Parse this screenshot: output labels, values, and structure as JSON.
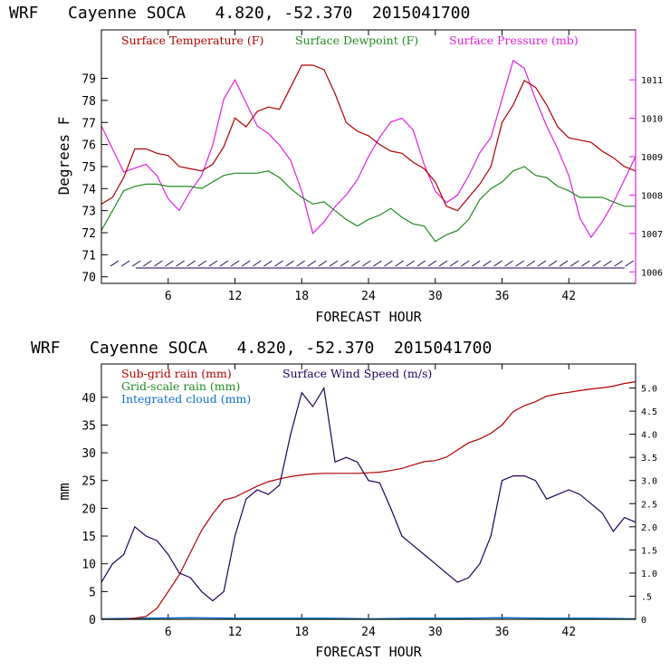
{
  "colors": {
    "temperature": "#b00000",
    "dewpoint": "#208a20",
    "pressure": "#e020e0",
    "subgrid_rain": "#b00000",
    "gridscale_rain": "#208a20",
    "cloud": "#1070d0",
    "wind": "#20005a",
    "axis": "#000000"
  },
  "chart_data": [
    {
      "type": "line",
      "title": "WRF   Cayenne SOCA   4.820, -52.370  2015041700",
      "xlabel": "FORECAST HOUR",
      "ylabel": "Degrees F",
      "xlim": [
        0,
        48
      ],
      "ylim": [
        69.7,
        81.2
      ],
      "y2lim": [
        1005.7,
        1012.3
      ],
      "xticks": [
        6,
        12,
        18,
        24,
        30,
        36,
        42
      ],
      "xtick_labels": [
        "6",
        "12",
        "18",
        "24",
        "30",
        "36",
        "42"
      ],
      "yticks": [
        70,
        71,
        72,
        73,
        74,
        75,
        76,
        77,
        78,
        79
      ],
      "ytick_labels": [
        "70",
        "71",
        "72",
        "73",
        "74",
        "75",
        "76",
        "77",
        "78",
        "79"
      ],
      "y2ticks": [
        1006,
        1007,
        1008,
        1009,
        1010,
        1011
      ],
      "y2tick_labels": [
        "1006",
        "1007",
        "1008",
        "1009",
        "1010",
        "1011"
      ],
      "legend": [
        "Surface Temperature (F)",
        "Surface Dewpoint (F)",
        "Surface Pressure (mb)"
      ],
      "series": [
        {
          "name": "Surface Temperature (F)",
          "axis": "left",
          "x": [
            0,
            1,
            2,
            3,
            4,
            5,
            6,
            7,
            8,
            9,
            10,
            11,
            12,
            13,
            14,
            15,
            16,
            17,
            18,
            19,
            20,
            21,
            22,
            23,
            24,
            25,
            26,
            27,
            28,
            29,
            30,
            31,
            32,
            33,
            34,
            35,
            36,
            37,
            38,
            39,
            40,
            41,
            42,
            43,
            44,
            45,
            46,
            47,
            48
          ],
          "values": [
            73.3,
            73.6,
            74.5,
            75.8,
            75.8,
            75.6,
            75.5,
            75.0,
            74.9,
            74.8,
            75.1,
            75.9,
            77.2,
            76.8,
            77.5,
            77.7,
            77.6,
            78.6,
            79.6,
            79.6,
            79.4,
            78.3,
            77.0,
            76.6,
            76.4,
            76.0,
            75.7,
            75.6,
            75.2,
            74.9,
            74.3,
            73.2,
            73.0,
            73.6,
            74.2,
            75.0,
            77.0,
            77.8,
            78.9,
            78.6,
            77.8,
            76.8,
            76.3,
            76.2,
            76.1,
            75.7,
            75.4,
            75.0,
            74.8
          ]
        },
        {
          "name": "Surface Dewpoint (F)",
          "axis": "left",
          "x": [
            0,
            1,
            2,
            3,
            4,
            5,
            6,
            7,
            8,
            9,
            10,
            11,
            12,
            13,
            14,
            15,
            16,
            17,
            18,
            19,
            20,
            21,
            22,
            23,
            24,
            25,
            26,
            27,
            28,
            29,
            30,
            31,
            32,
            33,
            34,
            35,
            36,
            37,
            38,
            39,
            40,
            41,
            42,
            43,
            44,
            45,
            46,
            47,
            48
          ],
          "values": [
            72.1,
            73.0,
            73.9,
            74.1,
            74.2,
            74.2,
            74.1,
            74.1,
            74.1,
            74.0,
            74.3,
            74.6,
            74.7,
            74.7,
            74.7,
            74.8,
            74.5,
            74.0,
            73.6,
            73.3,
            73.4,
            73.0,
            72.6,
            72.3,
            72.6,
            72.8,
            73.1,
            72.7,
            72.4,
            72.3,
            71.6,
            71.9,
            72.1,
            72.6,
            73.5,
            74.0,
            74.3,
            74.8,
            75.0,
            74.6,
            74.5,
            74.1,
            73.9,
            73.6,
            73.6,
            73.6,
            73.4,
            73.2,
            73.2
          ]
        },
        {
          "name": "Surface Pressure (mb)",
          "axis": "right",
          "x": [
            0,
            1,
            2,
            3,
            4,
            5,
            6,
            7,
            8,
            9,
            10,
            11,
            12,
            13,
            14,
            15,
            16,
            17,
            18,
            19,
            20,
            21,
            22,
            23,
            24,
            25,
            26,
            27,
            28,
            29,
            30,
            31,
            32,
            33,
            34,
            35,
            36,
            37,
            38,
            39,
            40,
            41,
            42,
            43,
            44,
            45,
            46,
            47,
            48
          ],
          "values": [
            1009.8,
            1009.2,
            1008.6,
            1008.7,
            1008.8,
            1008.5,
            1007.9,
            1007.6,
            1008.1,
            1008.5,
            1009.3,
            1010.5,
            1011.0,
            1010.4,
            1009.8,
            1009.6,
            1009.3,
            1008.9,
            1008.1,
            1007.0,
            1007.3,
            1007.7,
            1008.0,
            1008.4,
            1009.0,
            1009.5,
            1009.9,
            1010.0,
            1009.7,
            1008.8,
            1008.1,
            1007.8,
            1008.0,
            1008.5,
            1009.1,
            1009.5,
            1010.5,
            1011.5,
            1011.3,
            1010.5,
            1009.8,
            1009.2,
            1008.5,
            1007.4,
            1006.9,
            1007.3,
            1007.8,
            1008.4,
            1009.0
          ]
        }
      ],
      "wind_barbs": true
    },
    {
      "type": "line",
      "title": "WRF   Cayenne SOCA   4.820, -52.370  2015041700",
      "xlabel": "FORECAST HOUR",
      "ylabel": "mm",
      "xlim": [
        0,
        48
      ],
      "ylim": [
        0,
        46
      ],
      "y2lim": [
        0,
        5.52
      ],
      "xticks": [
        6,
        12,
        18,
        24,
        30,
        36,
        42
      ],
      "xtick_labels": [
        "6",
        "12",
        "18",
        "24",
        "30",
        "36",
        "42"
      ],
      "yticks": [
        0,
        5,
        10,
        15,
        20,
        25,
        30,
        35,
        40
      ],
      "ytick_labels": [
        "0",
        "5",
        "10",
        "15",
        "20",
        "25",
        "30",
        "35",
        "40"
      ],
      "y2ticks": [
        0,
        0.5,
        1.0,
        1.5,
        2.0,
        2.5,
        3.0,
        3.5,
        4.0,
        4.5,
        5.0
      ],
      "y2tick_labels": [
        "0",
        ".5",
        "1.0",
        "1.5",
        "2.0",
        "2.5",
        "3.0",
        "3.5",
        "4.0",
        "4.5",
        "5.0"
      ],
      "legend": [
        "Sub-grid rain (mm)",
        "Grid-scale rain (mm)",
        "Integrated cloud (mm)",
        "Surface Wind Speed (m/s)"
      ],
      "series": [
        {
          "name": "Sub-grid rain (mm)",
          "axis": "left",
          "x": [
            0,
            1,
            2,
            3,
            4,
            5,
            6,
            7,
            8,
            9,
            10,
            11,
            12,
            13,
            14,
            15,
            16,
            17,
            18,
            19,
            20,
            21,
            22,
            23,
            24,
            25,
            26,
            27,
            28,
            29,
            30,
            31,
            32,
            33,
            34,
            35,
            36,
            37,
            38,
            39,
            40,
            41,
            42,
            43,
            44,
            45,
            46,
            47,
            48
          ],
          "values": [
            0,
            0,
            0,
            0.2,
            0.5,
            2,
            5,
            8,
            12,
            16,
            19,
            21.5,
            22,
            23,
            24,
            24.8,
            25.3,
            25.7,
            26,
            26.2,
            26.3,
            26.3,
            26.3,
            26.3,
            26.4,
            26.5,
            26.8,
            27.2,
            27.8,
            28.4,
            28.6,
            29.2,
            30.5,
            31.8,
            32.5,
            33.5,
            35,
            37.4,
            38.5,
            39.2,
            40.2,
            40.6,
            40.9,
            41.2,
            41.5,
            41.7,
            42.0,
            42.5,
            42.8
          ]
        },
        {
          "name": "Grid-scale rain (mm)",
          "axis": "left",
          "x": [
            0,
            48
          ],
          "values": [
            0,
            0
          ]
        },
        {
          "name": "Integrated cloud (mm)",
          "axis": "left",
          "x": [
            0,
            4,
            8,
            12,
            16,
            20,
            24,
            28,
            32,
            36,
            40,
            44,
            48
          ],
          "values": [
            0.1,
            0.2,
            0.3,
            0.2,
            0.2,
            0.2,
            0.1,
            0.2,
            0.2,
            0.3,
            0.2,
            0.2,
            0.1
          ]
        },
        {
          "name": "Surface Wind Speed (m/s)",
          "axis": "right",
          "x": [
            0,
            1,
            2,
            3,
            4,
            5,
            6,
            7,
            8,
            9,
            10,
            11,
            12,
            13,
            14,
            15,
            16,
            17,
            18,
            19,
            20,
            21,
            22,
            23,
            24,
            25,
            26,
            27,
            28,
            29,
            30,
            31,
            32,
            33,
            34,
            35,
            36,
            37,
            38,
            39,
            40,
            41,
            42,
            43,
            44,
            45,
            46,
            47,
            48
          ],
          "values": [
            0.8,
            1.2,
            1.4,
            2.0,
            1.8,
            1.7,
            1.4,
            1.0,
            0.9,
            0.6,
            0.4,
            0.6,
            1.8,
            2.6,
            2.8,
            2.7,
            2.9,
            4.0,
            4.9,
            4.6,
            5.0,
            3.4,
            3.5,
            3.4,
            3.0,
            2.95,
            2.4,
            1.8,
            1.6,
            1.4,
            1.2,
            1.0,
            0.8,
            0.9,
            1.2,
            1.8,
            3.0,
            3.1,
            3.1,
            3.0,
            2.6,
            2.7,
            2.8,
            2.7,
            2.5,
            2.3,
            1.9,
            2.2,
            2.1
          ]
        }
      ]
    }
  ]
}
